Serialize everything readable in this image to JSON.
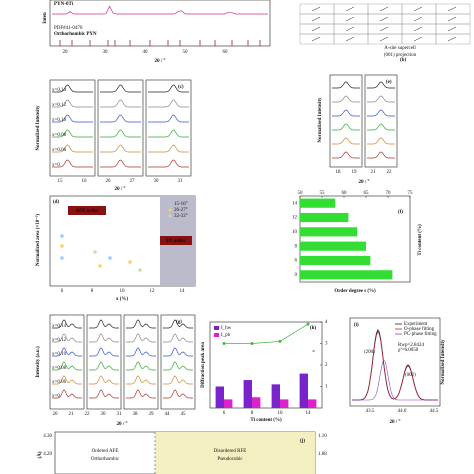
{
  "chart_data": [
    {
      "type": "hbar",
      "panel": "(f)",
      "x_label": "Order degree s (%)",
      "y_label": "Ti content (%)",
      "categories": [
        "14",
        "12",
        "10",
        "8",
        "6",
        "0"
      ],
      "values": [
        58,
        61,
        63,
        65,
        66,
        71
      ],
      "color": "#33dd33",
      "xlim": [
        50,
        75
      ],
      "xticks": [
        50,
        55,
        60,
        65,
        70,
        75
      ]
    },
    {
      "type": "bar",
      "panel": "(h)",
      "y_label": "Diffraction peak area",
      "x_label": "Ti content (%)",
      "categories": [
        "6",
        "8",
        "10",
        "14"
      ],
      "series": [
        {
          "name": "I_hw",
          "color": "#7a22cc",
          "values": [
            1.0,
            1.3,
            1.1,
            1.6
          ]
        },
        {
          "name": "I_pb",
          "color": "#dd22cc",
          "values": [
            0.4,
            0.5,
            0.4,
            0.4
          ]
        },
        {
          "name": "s",
          "color": "#44bb44",
          "axis": "y2",
          "values": [
            3.0,
            3.0,
            3.1,
            3.9
          ]
        }
      ],
      "ylim": [
        0,
        4
      ],
      "y2lim": [
        0,
        4
      ],
      "y2ticks": [
        1,
        2,
        3,
        4
      ]
    }
  ],
  "panels": {
    "a": {
      "y_title": "Inten",
      "phase": "PYN-0Ti",
      "pdf": "PDF#41-0470",
      "orth": "Orthorhombic PYN",
      "x_title": "2θ / °",
      "xticks": [
        "20",
        "30",
        "40",
        "50",
        "60"
      ]
    },
    "b": {
      "caption1": "A-site supercell",
      "caption2": "(001) projection",
      "label": "(b)"
    },
    "side1": "A-site antiparallel peaks",
    "side2": "B-site ordering peaks",
    "c": {
      "label": "(c)",
      "y_title": "Normalized Intensity",
      "x_title": "2θ / °",
      "curves": [
        "x=0.14",
        "x=0.12",
        "x=0.10",
        "x=0.08",
        "x=0.06",
        "x=0"
      ],
      "xticks": [
        "15",
        "16",
        "26",
        "27",
        "30",
        "31"
      ]
    },
    "e": {
      "label": "(e)",
      "y_title": "Normalized Intensity",
      "x_title": "2θ / °",
      "xticks": [
        "18",
        "19",
        "21",
        "22"
      ]
    },
    "d": {
      "label": "(d)",
      "afe": "AFE order",
      "fe": "FE order",
      "y_title": "Normalized area (×10⁻³)",
      "x_title": "x (%)",
      "legend": [
        "15-16°",
        "26-27°",
        "32-33°"
      ],
      "xticks": [
        "6",
        "8",
        "10",
        "12",
        "14"
      ]
    },
    "g": {
      "label": "(g)",
      "y_title": "Intensity (a.u.)",
      "x_title": "2θ / °",
      "curves": [
        "x=0.14",
        "x=0.12",
        "x=0.10",
        "x=0.08",
        "x=0.06",
        "x=0"
      ],
      "xticks": [
        "20",
        "21",
        "22",
        "30",
        "31",
        "38",
        "39",
        "44",
        "45"
      ]
    },
    "i": {
      "label": "(i)",
      "y_title": "Normalized Intensity",
      "x_title": "2θ / °",
      "legend": [
        "Experiment",
        "O-phase fitting",
        "PC-phase fitting"
      ],
      "p1": "(200)",
      "p2": "(002)",
      "rwp": "Rwp=2.8424",
      "chi": "χ²=6.0050",
      "xticks": [
        "43.5",
        "44.0",
        "44.5"
      ]
    },
    "j": {
      "label": "(j)",
      "left": "Ordered AFE",
      "left2": "Orthorhombic",
      "right": "Disordered RFE",
      "right2": "Pseudocubic",
      "y_title": "(Å)",
      "yticks": [
        "4.30",
        "4.20"
      ],
      "y2ticks": [
        "1.10",
        "1.08"
      ]
    }
  }
}
